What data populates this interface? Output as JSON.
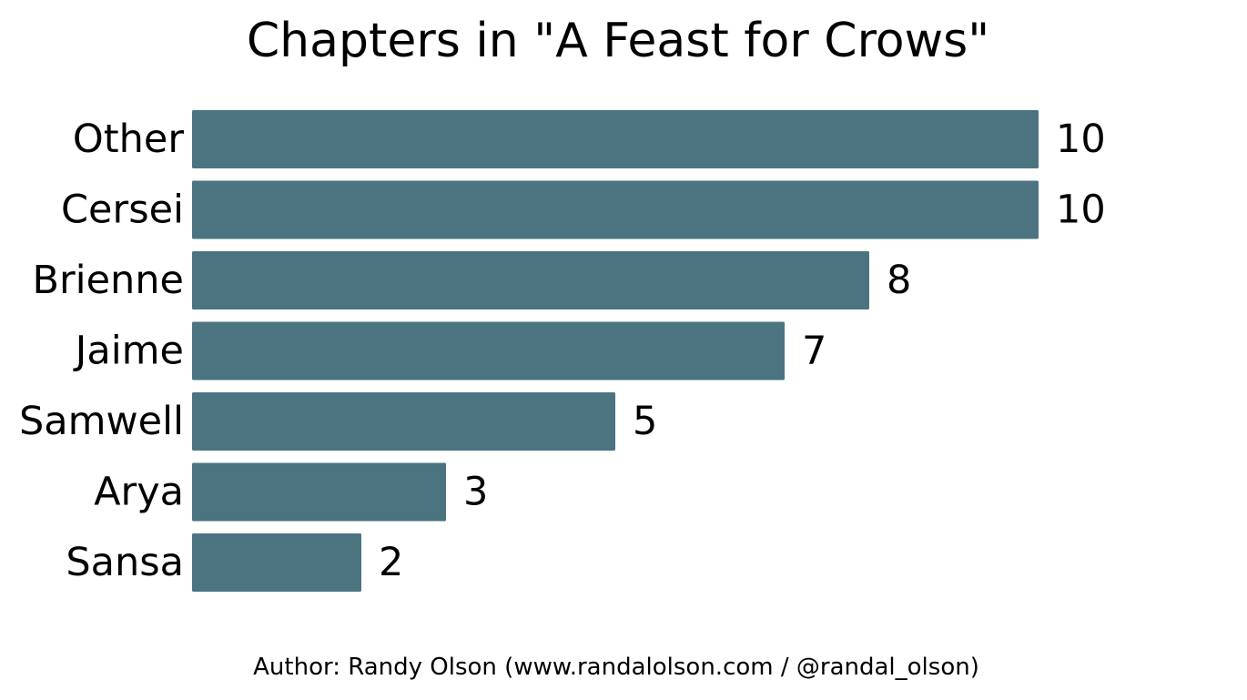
{
  "chart_data": {
    "type": "bar",
    "orientation": "horizontal",
    "title": "Chapters in \"A Feast for Crows\"",
    "categories": [
      "Other",
      "Cersei",
      "Brienne",
      "Jaime",
      "Samwell",
      "Arya",
      "Sansa"
    ],
    "values": [
      10,
      10,
      8,
      7,
      5,
      3,
      2
    ],
    "xlabel": "",
    "ylabel": "",
    "xlim": [
      0,
      10
    ],
    "grid": false,
    "data_labels": true,
    "bar_color": "#4b7480"
  },
  "footer": {
    "author": "Author: Randy Olson (www.randalolson.com / @randal_olson)"
  }
}
